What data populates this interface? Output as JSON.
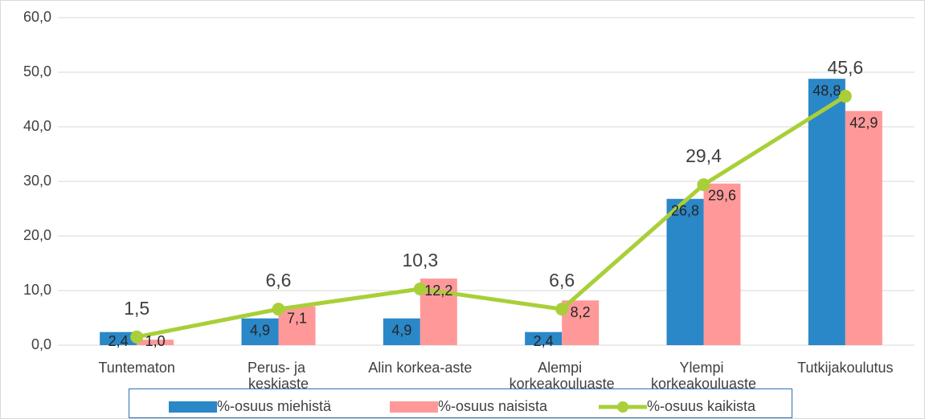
{
  "chart_data": {
    "type": "bar",
    "categories": [
      "Tuntematon",
      "Perus- ja keskiaste",
      "Alin korkea-aste",
      "Alempi korkeakouluaste",
      "Ylempi korkeakouluaste",
      "Tutkijakoulutus"
    ],
    "series": [
      {
        "name": "%-osuus miehistä",
        "color": "#2a87c8",
        "type": "bar",
        "values": [
          2.4,
          4.9,
          4.9,
          2.4,
          26.8,
          48.8
        ],
        "value_labels": [
          "2,4",
          "4,9",
          "4,9",
          "2,4",
          "26,8",
          "48,8"
        ]
      },
      {
        "name": "%-osuus naisista",
        "color": "#ff9999",
        "type": "bar",
        "values": [
          1.0,
          7.1,
          12.2,
          8.2,
          29.6,
          42.9
        ],
        "value_labels": [
          "1,0",
          "7,1",
          "12,2",
          "8,2",
          "29,6",
          "42,9"
        ]
      },
      {
        "name": "%-osuus kaikista",
        "color": "#a9cf38",
        "type": "line",
        "values": [
          1.5,
          6.6,
          10.3,
          6.6,
          29.4,
          45.6
        ],
        "value_labels": [
          "1,5",
          "6,6",
          "10,3",
          "6,6",
          "29,4",
          "45,6"
        ]
      }
    ],
    "ylim": [
      0,
      60
    ],
    "yticks": [
      {
        "value": 0,
        "label": "0,0"
      },
      {
        "value": 10,
        "label": "10,0"
      },
      {
        "value": 20,
        "label": "20,0"
      },
      {
        "value": 30,
        "label": "30,0"
      },
      {
        "value": 40,
        "label": "40,0"
      },
      {
        "value": 50,
        "label": "50,0"
      },
      {
        "value": 60,
        "label": "60,0"
      }
    ],
    "grid": true,
    "legend": "bottom"
  }
}
